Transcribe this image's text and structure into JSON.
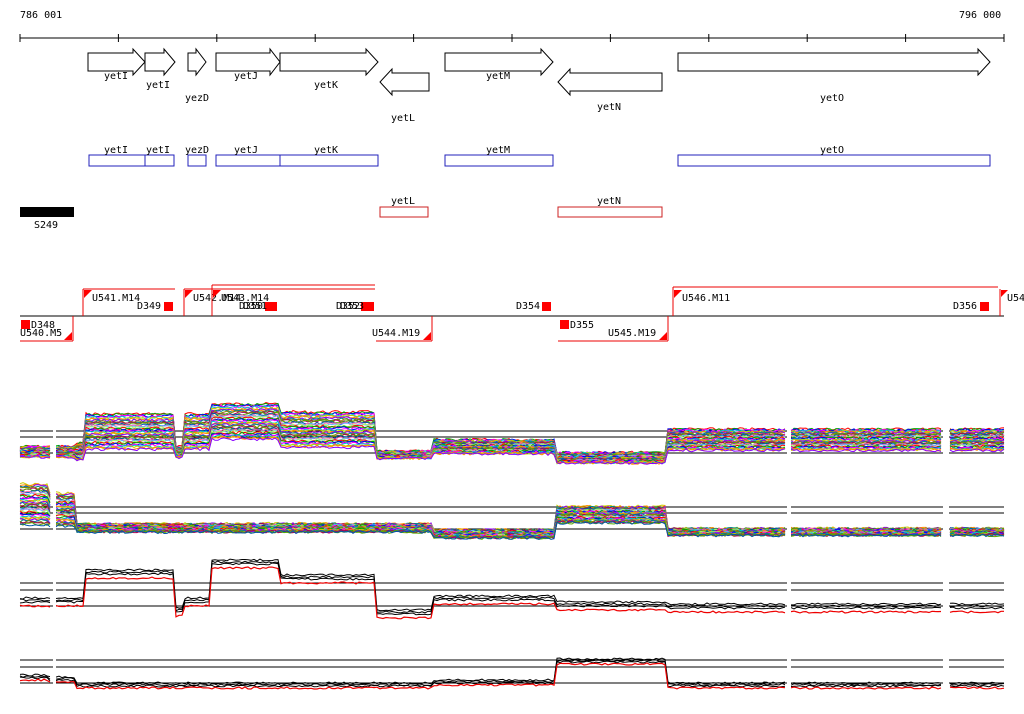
{
  "coordinates": {
    "start": "786 001",
    "end": "796 000"
  },
  "gene_arrows": [
    {
      "label": "yetI",
      "strand": "+"
    },
    {
      "label": "yetI",
      "strand": "+"
    },
    {
      "label": "yezD",
      "strand": "+"
    },
    {
      "label": "yetJ",
      "strand": "+"
    },
    {
      "label": "yetK",
      "strand": "+"
    },
    {
      "label": "yetL",
      "strand": "-"
    },
    {
      "label": "yetM",
      "strand": "+"
    },
    {
      "label": "yetN",
      "strand": "-"
    },
    {
      "label": "yetO",
      "strand": "+"
    }
  ],
  "cds_forward": [
    "yetI",
    "yetI",
    "yezD",
    "yetJ",
    "yetK",
    "yetM",
    "yetO"
  ],
  "cds_reverse": [
    "yetL",
    "yetN"
  ],
  "segment": {
    "label": "S249"
  },
  "upper_units": [
    {
      "label": "U541.M14"
    },
    {
      "label": "U542.M14"
    },
    {
      "label": "U543.M14"
    },
    {
      "label": "U546.M11"
    },
    {
      "label": "U54"
    }
  ],
  "upper_markers": [
    "D349",
    "D350",
    "D351",
    "D352",
    "D353",
    "D354",
    "D356"
  ],
  "lower_units": [
    {
      "label": "U540.M5"
    },
    {
      "label": "U544.M19"
    },
    {
      "label": "U545.M19"
    }
  ],
  "lower_markers": [
    "D348",
    "D355"
  ],
  "colors": {
    "forward_cds": "#2222bb",
    "reverse_cds": "#cc2222",
    "marker_fill": "#ff0000",
    "segment_fill": "#000000",
    "track_highlight": "#ee0000"
  }
}
